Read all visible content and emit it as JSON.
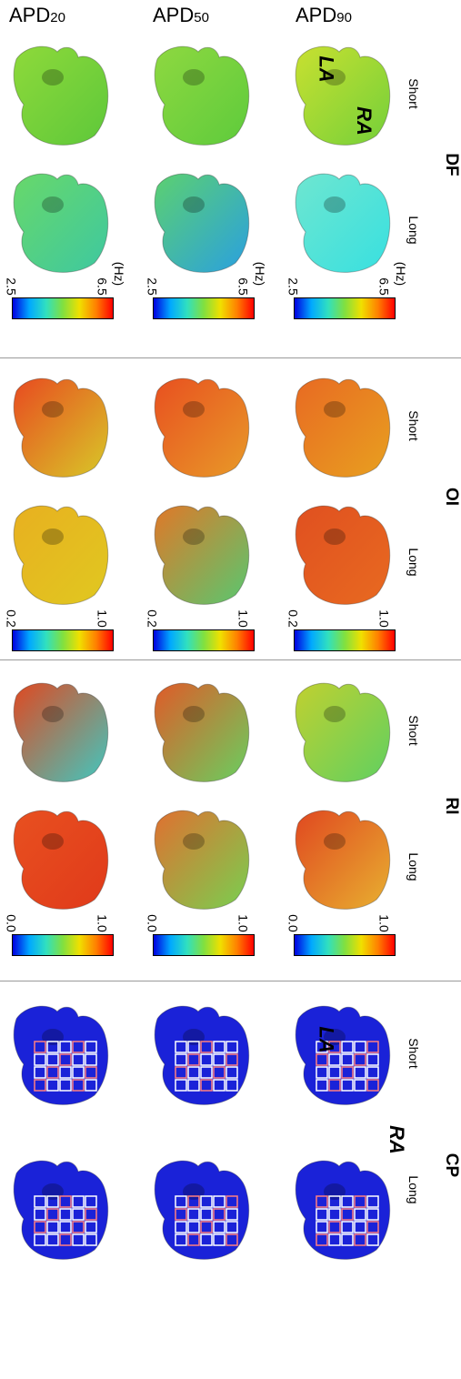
{
  "columns": [
    {
      "main": "APD",
      "sub": "20"
    },
    {
      "main": "APD",
      "sub": "50"
    },
    {
      "main": "APD",
      "sub": "90"
    }
  ],
  "panels": [
    {
      "title": "DF",
      "short": "Short",
      "long": "Long",
      "cbar_min": "2.5",
      "cbar_max": "6.5",
      "unit": "(Hz)",
      "colors": [
        {
          "short": "#5ec83a",
          "short2": "#8ed93a",
          "long": "#3ec8a0",
          "long2": "#68d86a"
        },
        {
          "short": "#5ecb3c",
          "short2": "#8ed840",
          "long": "#2aa0e0",
          "long2": "#5cd070"
        },
        {
          "short": "#74d03a",
          "short2": "#c8e030",
          "long": "#38e0e0",
          "long2": "#6ee6d0"
        }
      ]
    },
    {
      "title": "OI",
      "short": "Short",
      "long": "Long",
      "cbar_min": "0.2",
      "cbar_max": "1.0",
      "unit": "",
      "colors": [
        {
          "short": "#d8c828",
          "short2": "#e84a20",
          "long": "#e0c820",
          "long2": "#e8b020"
        },
        {
          "short": "#e89a28",
          "short2": "#e85020",
          "long": "#58c870",
          "long2": "#e07828"
        },
        {
          "short": "#e8a020",
          "short2": "#e86a22",
          "long": "#e86a20",
          "long2": "#e05020"
        }
      ]
    },
    {
      "title": "RI",
      "short": "Short",
      "long": "Long",
      "cbar_min": "0.0",
      "cbar_max": "1.0",
      "unit": "",
      "colors": [
        {
          "short": "#40c8c0",
          "short2": "#e04820",
          "long": "#e03a1a",
          "long2": "#e85020"
        },
        {
          "short": "#68d060",
          "short2": "#e05a28",
          "long": "#78d050",
          "long2": "#e07030"
        },
        {
          "short": "#60d060",
          "short2": "#c0d030",
          "long": "#e8b030",
          "long2": "#e04820"
        }
      ]
    },
    {
      "title": "CP",
      "short": "Short",
      "long": "Long",
      "cbar_min": "",
      "cbar_max": "",
      "unit": "",
      "colors": [
        {
          "short": "#1a22d8",
          "short2": "#1a22d8",
          "long": "#1a22d8",
          "long2": "#1a22d8"
        },
        {
          "short": "#1a22d8",
          "short2": "#1a22d8",
          "long": "#1a22d8",
          "long2": "#1a22d8"
        },
        {
          "short": "#1a22d8",
          "short2": "#1a22d8",
          "long": "#1a22d8",
          "long2": "#1a22d8"
        }
      ]
    }
  ],
  "labels": {
    "la": "LA",
    "ra": "RA"
  },
  "colormap": [
    "#0000e0",
    "#00a8ff",
    "#30e0c0",
    "#80e040",
    "#f0e000",
    "#ff8000",
    "#ff0000"
  ]
}
